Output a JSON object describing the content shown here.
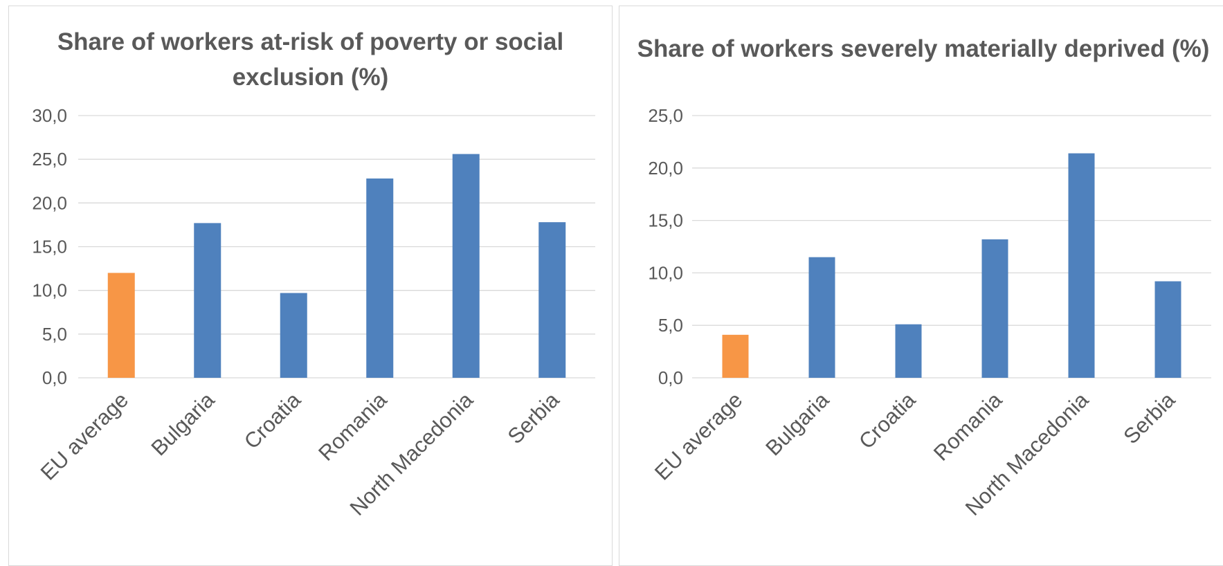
{
  "chart_data": [
    {
      "type": "bar",
      "title": "Share of workers at-risk of poverty or social exclusion (%)",
      "categories": [
        "EU average",
        "Bulgaria",
        "Croatia",
        "Romania",
        "North Macedonia",
        "Serbia"
      ],
      "values": [
        12.0,
        17.7,
        9.7,
        22.8,
        25.6,
        17.8
      ],
      "ylim": [
        0,
        30
      ],
      "yticks": [
        0,
        5,
        10,
        15,
        20,
        25,
        30
      ],
      "ytick_labels": [
        "0,0",
        "5,0",
        "10,0",
        "15,0",
        "20,0",
        "25,0",
        "30,0"
      ],
      "xlabel": "",
      "ylabel": "",
      "grid": true,
      "legend": "none",
      "colors": {
        "highlight": "#F79646",
        "default": "#4F81BD"
      },
      "highlight_category": "EU average"
    },
    {
      "type": "bar",
      "title": "Share of workers severely materially deprived (%)",
      "categories": [
        "EU average",
        "Bulgaria",
        "Croatia",
        "Romania",
        "North Macedonia",
        "Serbia"
      ],
      "values": [
        4.1,
        11.5,
        5.1,
        13.2,
        21.4,
        9.2
      ],
      "ylim": [
        0,
        25
      ],
      "yticks": [
        0,
        5,
        10,
        15,
        20,
        25
      ],
      "ytick_labels": [
        "0,0",
        "5,0",
        "10,0",
        "15,0",
        "20,0",
        "25,0"
      ],
      "xlabel": "",
      "ylabel": "",
      "grid": true,
      "legend": "none",
      "colors": {
        "highlight": "#F79646",
        "default": "#4F81BD"
      },
      "highlight_category": "EU average"
    }
  ]
}
